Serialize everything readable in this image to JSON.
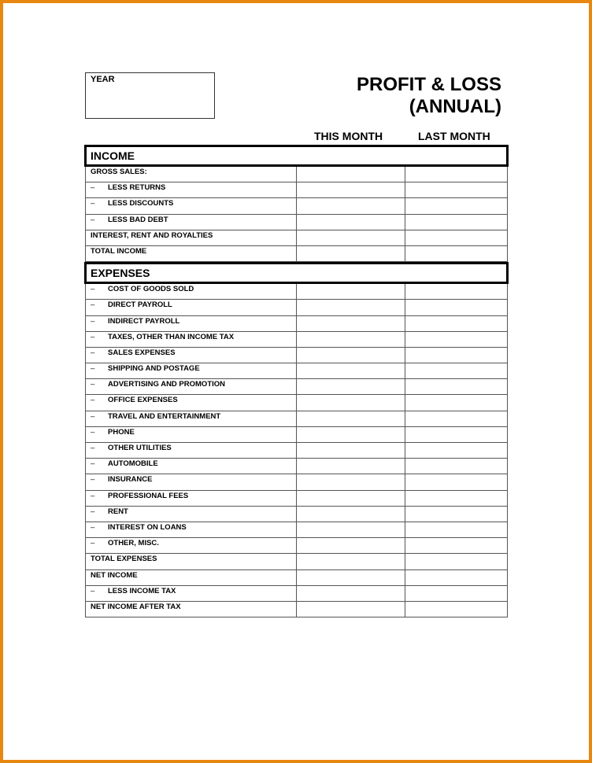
{
  "page": {
    "border_color": "#e8870f"
  },
  "year_label": "YEAR",
  "title": {
    "line1": "PROFIT & LOSS",
    "line2": "(ANNUAL)"
  },
  "columns": {
    "this_month": "THIS MONTH",
    "last_month": "LAST MONTH"
  },
  "income": {
    "header": "INCOME",
    "rows": [
      {
        "label": "GROSS SALES:",
        "dash": ""
      },
      {
        "label": "LESS RETURNS",
        "dash": "–"
      },
      {
        "label": "LESS DISCOUNTS",
        "dash": "–"
      },
      {
        "label": "LESS BAD DEBT",
        "dash": "–"
      },
      {
        "label": "INTEREST, RENT AND ROYALTIES",
        "dash": ""
      },
      {
        "label": "TOTAL INCOME",
        "dash": ""
      }
    ]
  },
  "expenses": {
    "header": "EXPENSES",
    "rows": [
      {
        "label": "COST OF GOODS SOLD",
        "dash": "–"
      },
      {
        "label": "DIRECT PAYROLL",
        "dash": "–"
      },
      {
        "label": "INDIRECT PAYROLL",
        "dash": "–"
      },
      {
        "label": "TAXES, OTHER THAN INCOME TAX",
        "dash": "–"
      },
      {
        "label": "SALES EXPENSES",
        "dash": "–"
      },
      {
        "label": "SHIPPING AND POSTAGE",
        "dash": "–"
      },
      {
        "label": "ADVERTISING AND PROMOTION",
        "dash": "–"
      },
      {
        "label": "OFFICE EXPENSES",
        "dash": "–"
      },
      {
        "label": "TRAVEL AND ENTERTAINMENT",
        "dash": "–"
      },
      {
        "label": "PHONE",
        "dash": "–"
      },
      {
        "label": "OTHER UTILITIES",
        "dash": "–"
      },
      {
        "label": "AUTOMOBILE",
        "dash": "–"
      },
      {
        "label": "INSURANCE",
        "dash": "–"
      },
      {
        "label": "PROFESSIONAL FEES",
        "dash": "–"
      },
      {
        "label": "RENT",
        "dash": "–"
      },
      {
        "label": "INTEREST ON LOANS",
        "dash": "–"
      },
      {
        "label": "OTHER, MISC.",
        "dash": "–"
      },
      {
        "label": "TOTAL EXPENSES",
        "dash": ""
      },
      {
        "label": "NET INCOME",
        "dash": ""
      },
      {
        "label": "LESS INCOME TAX",
        "dash": "–"
      },
      {
        "label": "NET INCOME AFTER TAX",
        "dash": ""
      }
    ]
  }
}
